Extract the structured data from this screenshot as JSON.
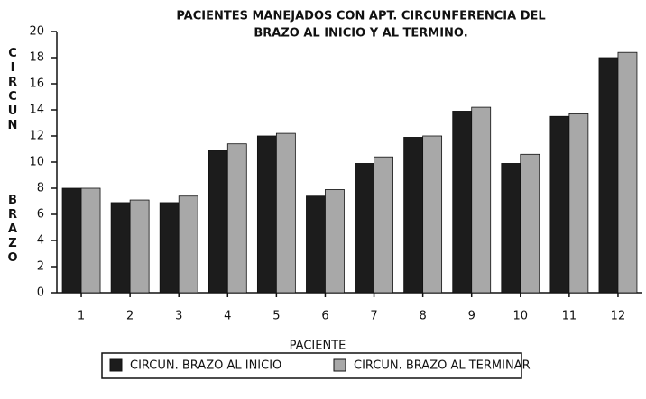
{
  "chart_data": {
    "type": "bar",
    "title": [
      "PACIENTES MANEJADOS CON APT. CIRCUNFERENCIA DEL",
      "BRAZO AL INICIO Y AL TERMINO."
    ],
    "x_label": "PACIENTE",
    "y_label": [
      "CIRCUN",
      "BRAZO"
    ],
    "categories": [
      "1",
      "2",
      "3",
      "4",
      "5",
      "6",
      "7",
      "8",
      "9",
      "10",
      "11",
      "12"
    ],
    "series": [
      {
        "name": "CIRCUN. BRAZO AL INICIO",
        "color": "#1c1c1c",
        "values": [
          8,
          6.9,
          6.9,
          10.9,
          12,
          7.4,
          9.9,
          11.9,
          13.9,
          9.9,
          13.5,
          18
        ]
      },
      {
        "name": "CIRCUN. BRAZO AL TERMINAR",
        "color": "#a8a8a8",
        "values": [
          8,
          7.1,
          7.4,
          11.4,
          12.2,
          7.9,
          10.4,
          12,
          14.2,
          10.6,
          13.7,
          18.4
        ]
      }
    ],
    "ylim": [
      0,
      20
    ],
    "yticks": [
      0,
      2,
      4,
      6,
      8,
      10,
      12,
      14,
      16,
      18,
      20
    ],
    "grid": false
  }
}
